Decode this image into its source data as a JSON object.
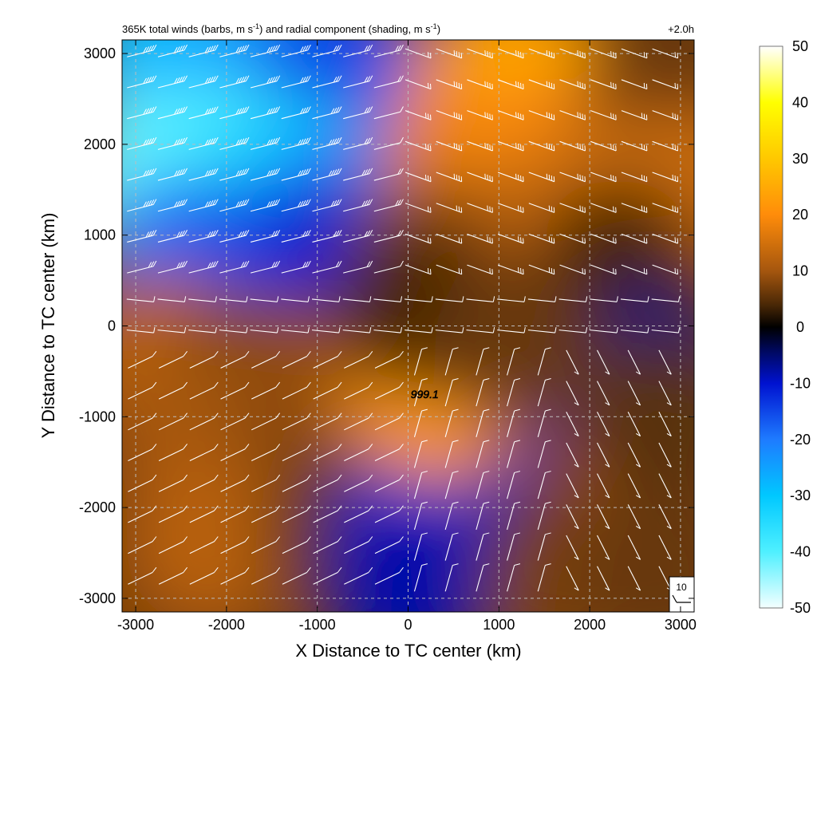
{
  "chart_data": {
    "type": "heatmap",
    "title": "365K total winds (barbs, m s",
    "title_sup1": "-1",
    "title_mid": ") and radial component (shading, m s",
    "title_sup2": "-1",
    "title_end": ")",
    "time_label": "+2.0h",
    "xlabel": "X Distance to TC center (km)",
    "ylabel": "Y Distance to TC center (km)",
    "xlim": [
      -3150,
      3150
    ],
    "ylim": [
      -3150,
      3150
    ],
    "x_ticks": [
      -3000,
      -2000,
      -1000,
      0,
      1000,
      2000,
      3000
    ],
    "y_ticks": [
      3000,
      2000,
      1000,
      0,
      -1000,
      -2000,
      -3000
    ],
    "grid": true,
    "colorbar": {
      "placement": "right",
      "min": -50,
      "max": 50,
      "ticks": [
        50,
        40,
        30,
        20,
        10,
        0,
        -10,
        -20,
        -30,
        -40,
        -50
      ],
      "stops": [
        {
          "value": -50,
          "color": "#f4ffff"
        },
        {
          "value": -40,
          "color": "#4ff0ff"
        },
        {
          "value": -30,
          "color": "#00c8ff"
        },
        {
          "value": -20,
          "color": "#1e7bff"
        },
        {
          "value": -10,
          "color": "#0012d0"
        },
        {
          "value": -4,
          "color": "#00085a"
        },
        {
          "value": 0,
          "color": "#000000"
        },
        {
          "value": 4,
          "color": "#4a2806"
        },
        {
          "value": 10,
          "color": "#a5560e"
        },
        {
          "value": 20,
          "color": "#ff8c0a"
        },
        {
          "value": 30,
          "color": "#ffc800"
        },
        {
          "value": 40,
          "color": "#ffff00"
        },
        {
          "value": 50,
          "color": "#ffffff"
        }
      ]
    },
    "shading_field": [
      {
        "x": -2600,
        "y": 2900,
        "value": -28
      },
      {
        "x": -1500,
        "y": 2900,
        "value": -25
      },
      {
        "x": -800,
        "y": 2900,
        "value": -15
      },
      {
        "x": -2700,
        "y": 1600,
        "value": -42
      },
      {
        "x": -2000,
        "y": 1700,
        "value": -40
      },
      {
        "x": -1300,
        "y": 1500,
        "value": -32
      },
      {
        "x": -700,
        "y": 1200,
        "value": -20
      },
      {
        "x": -2500,
        "y": 700,
        "value": -18
      },
      {
        "x": -1500,
        "y": 700,
        "value": -15
      },
      {
        "x": -700,
        "y": 700,
        "value": -10
      },
      {
        "x": 800,
        "y": 2400,
        "value": 20
      },
      {
        "x": 1200,
        "y": 2700,
        "value": 24
      },
      {
        "x": 600,
        "y": 1800,
        "value": 18
      },
      {
        "x": 1500,
        "y": 1800,
        "value": 20
      },
      {
        "x": 2400,
        "y": 2000,
        "value": 15
      },
      {
        "x": 2900,
        "y": 2900,
        "value": 6
      },
      {
        "x": 3000,
        "y": 1500,
        "value": 14
      },
      {
        "x": 1200,
        "y": 1000,
        "value": 14
      },
      {
        "x": 2300,
        "y": 700,
        "value": 4
      },
      {
        "x": 200,
        "y": 700,
        "value": 8
      },
      {
        "x": -2700,
        "y": -300,
        "value": 12
      },
      {
        "x": -1700,
        "y": -500,
        "value": 8
      },
      {
        "x": -2300,
        "y": -1300,
        "value": 10
      },
      {
        "x": -1000,
        "y": -1300,
        "value": 8
      },
      {
        "x": -2200,
        "y": -2400,
        "value": 12
      },
      {
        "x": -700,
        "y": -2300,
        "value": 6
      },
      {
        "x": -500,
        "y": -500,
        "value": 9
      },
      {
        "x": 500,
        "y": -400,
        "value": -8
      },
      {
        "x": 800,
        "y": -800,
        "value": -14
      },
      {
        "x": 400,
        "y": -1600,
        "value": -12
      },
      {
        "x": 100,
        "y": -2300,
        "value": -10
      },
      {
        "x": 0,
        "y": -2900,
        "value": -8
      },
      {
        "x": 2700,
        "y": -500,
        "value": -6
      },
      {
        "x": 1500,
        "y": -1500,
        "value": -8
      },
      {
        "x": 2300,
        "y": -1800,
        "value": 9
      },
      {
        "x": 1700,
        "y": -2700,
        "value": 7
      },
      {
        "x": 2800,
        "y": -2700,
        "value": 6
      },
      {
        "x": 2800,
        "y": -1000,
        "value": 5
      },
      {
        "x": 300,
        "y": -700,
        "value": 22
      },
      {
        "x": 100,
        "y": 150,
        "value": 4
      },
      {
        "x": 1200,
        "y": -200,
        "value": 6
      }
    ],
    "center_label": "999.1",
    "center_x": 200,
    "center_y": -750,
    "reference_barb": {
      "label": "10",
      "position": "bottom-right"
    },
    "barb_grid_step_km": 340
  }
}
